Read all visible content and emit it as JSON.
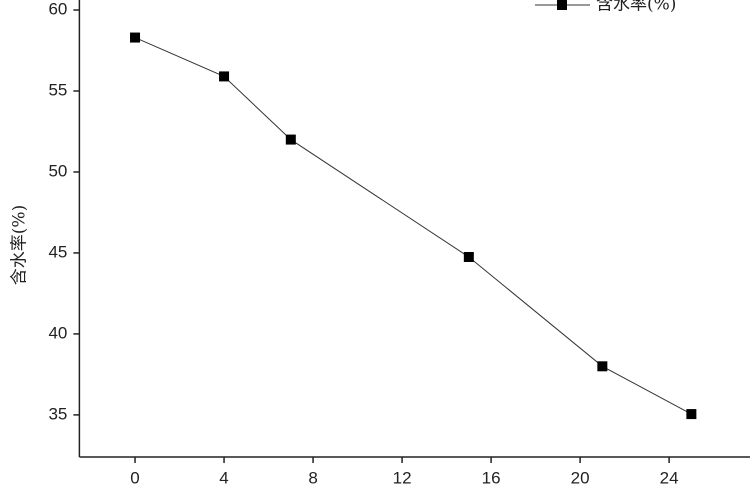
{
  "chart_data": {
    "type": "line",
    "y_label": "含水率(%)",
    "x": [
      0,
      4,
      7,
      15,
      21,
      25
    ],
    "series": [
      {
        "name": "含水率(%)",
        "color": "#333333",
        "values": [
          58.3,
          55.9,
          52.0,
          44.75,
          38.0,
          35.05
        ]
      }
    ],
    "xlim": [
      -2.5,
      27.5
    ],
    "xticks": [
      0,
      4,
      8,
      12,
      16,
      20,
      24
    ],
    "ylim": [
      32.4,
      60.6
    ],
    "yticks": [
      35,
      40,
      45,
      50,
      55,
      60
    ],
    "legend": "top-right"
  }
}
